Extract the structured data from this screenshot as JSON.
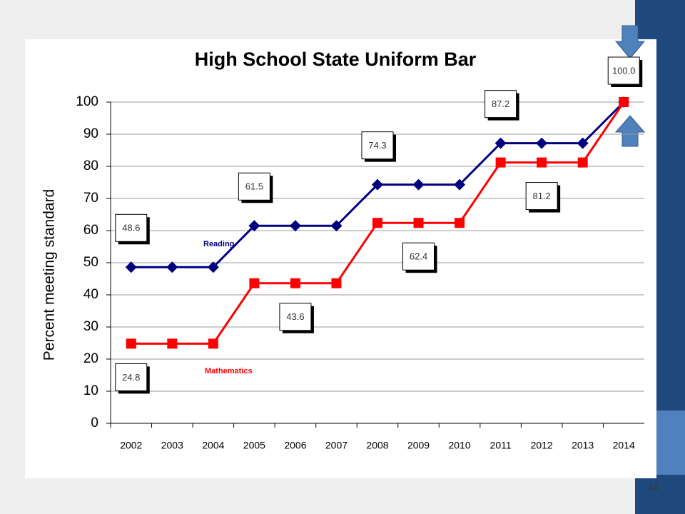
{
  "chart_data": {
    "type": "line",
    "title": "High School State Uniform Bar",
    "y_label": "Percent meeting standard",
    "categories": [
      "2002",
      "2003",
      "2004",
      "2005",
      "2006",
      "2007",
      "2008",
      "2009",
      "2010",
      "2011",
      "2012",
      "2013",
      "2014"
    ],
    "series": [
      {
        "name": "Reading",
        "color": "#000080",
        "marker": "diamond",
        "values": [
          48.6,
          48.6,
          48.6,
          61.5,
          61.5,
          61.5,
          74.3,
          74.3,
          74.3,
          87.2,
          87.2,
          87.2,
          100
        ],
        "value_labels": [
          "48.6",
          null,
          null,
          "61.5",
          null,
          null,
          "74.3",
          null,
          null,
          "87.2",
          null,
          null,
          "100.0"
        ]
      },
      {
        "name": "Mathematics",
        "color": "#ff0000",
        "marker": "square",
        "values": [
          24.8,
          24.8,
          24.8,
          43.6,
          43.6,
          43.6,
          62.4,
          62.4,
          62.4,
          81.2,
          81.2,
          81.2,
          100
        ],
        "value_labels": [
          "24.8",
          null,
          null,
          null,
          "43.6",
          null,
          null,
          "62.4",
          null,
          null,
          "81.2",
          null,
          null
        ]
      }
    ],
    "ylim": [
      0,
      100
    ],
    "yticks": [
      0,
      10,
      20,
      30,
      40,
      50,
      60,
      70,
      80,
      90,
      100
    ],
    "grid": true
  },
  "slide_number": "14"
}
